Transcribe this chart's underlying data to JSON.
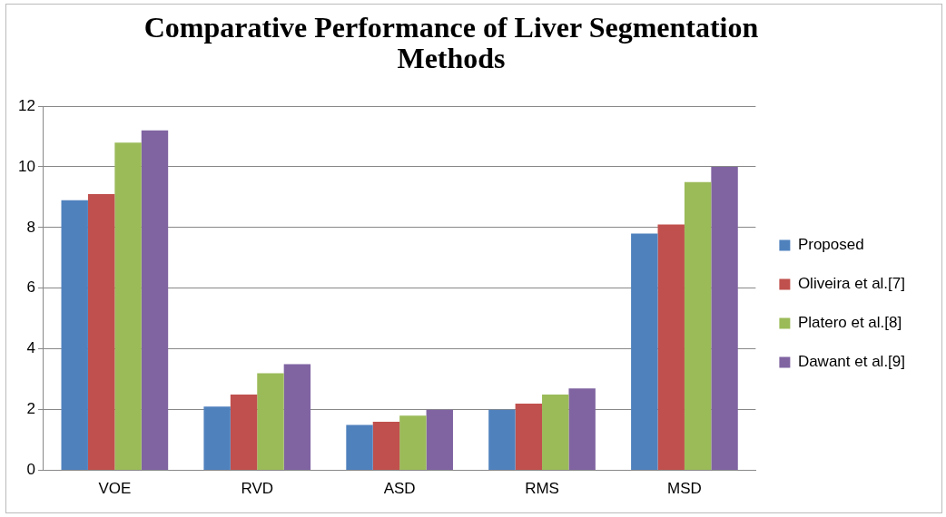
{
  "chart_data": {
    "type": "bar",
    "title": "Comparative Performance of Liver Segmentation Methods",
    "categories": [
      "VOE",
      "RVD",
      "ASD",
      "RMS",
      "MSD"
    ],
    "series": [
      {
        "name": "Proposed",
        "color": "#4f81bd",
        "values": [
          8.9,
          2.1,
          1.5,
          2.0,
          7.8
        ]
      },
      {
        "name": "Oliveira et al.[7]",
        "color": "#c0504d",
        "values": [
          9.1,
          2.5,
          1.6,
          2.2,
          8.1
        ]
      },
      {
        "name": "Platero et al.[8]",
        "color": "#9bbb59",
        "values": [
          10.8,
          3.2,
          1.8,
          2.5,
          9.5
        ]
      },
      {
        "name": "Dawant et al.[9]",
        "color": "#8064a2",
        "values": [
          11.2,
          3.5,
          2.0,
          2.7,
          10.0
        ]
      }
    ],
    "ylim": [
      0,
      12
    ],
    "yticks": [
      0,
      2,
      4,
      6,
      8,
      10,
      12
    ],
    "grid": "y",
    "legend": "right"
  }
}
